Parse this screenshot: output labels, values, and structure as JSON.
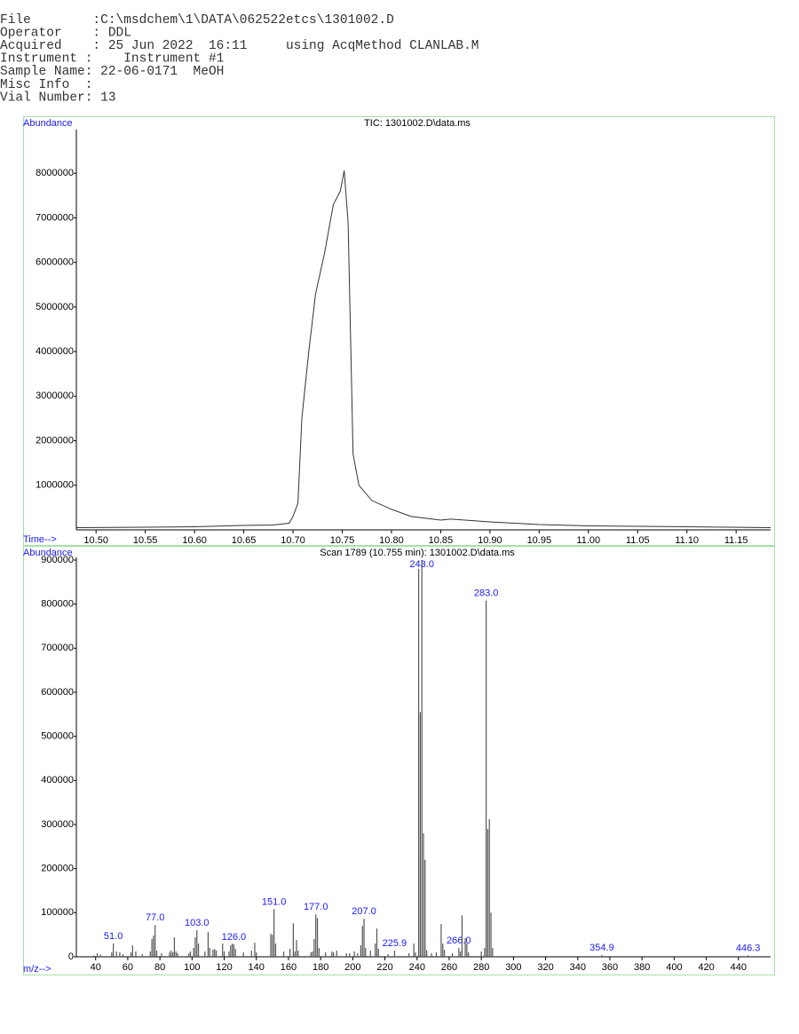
{
  "header": {
    "lines": [
      "File        :C:\\msdchem\\1\\DATA\\062522etcs\\1301002.D",
      "Operator    : DDL",
      "Acquired    : 25 Jun 2022  16:11     using AcqMethod CLANLAB.M",
      "Instrument :    Instrument #1",
      "Sample Name: 22-06-0171  MeOH",
      "Misc Info  :",
      "Vial Number: 13"
    ]
  },
  "chart_data": [
    {
      "type": "line",
      "title": "TIC: 1301002.D\\data.ms",
      "y_label": "Abundance",
      "x_label": "Time-->",
      "color": "#333333",
      "x": [
        10.48,
        10.55,
        10.6,
        10.65,
        10.68,
        10.696,
        10.7,
        10.705,
        10.709,
        10.716,
        10.723,
        10.732,
        10.741,
        10.748,
        10.752,
        10.756,
        10.761,
        10.767,
        10.78,
        10.8,
        10.82,
        10.85,
        10.86,
        10.9,
        10.95,
        11.0,
        11.1,
        11.185
      ],
      "values": [
        50000,
        60000,
        70000,
        100000,
        110000,
        150000,
        300000,
        600000,
        2500000,
        4000000,
        5300000,
        6200000,
        7300000,
        7600000,
        8060000,
        6900000,
        1700000,
        1000000,
        660000,
        460000,
        300000,
        220000,
        240000,
        180000,
        120000,
        90000,
        70000,
        50000
      ],
      "xlim": [
        10.48,
        11.185
      ],
      "ylim": [
        0,
        8980000
      ],
      "xticks": [
        {
          "value": 10.5,
          "label": "10.50"
        },
        10.55,
        {
          "value": 10.6,
          "label": "10.60"
        },
        10.65,
        {
          "value": 10.7,
          "label": "10.70"
        },
        10.75,
        {
          "value": 10.8,
          "label": "10.80"
        },
        10.85,
        {
          "value": 10.9,
          "label": "10.90"
        },
        10.95,
        {
          "value": 11,
          "label": "11.00"
        },
        11.05,
        {
          "value": 11.1,
          "label": "11.10"
        },
        11.15
      ],
      "yticks": [
        1000000,
        2000000,
        3000000,
        4000000,
        5000000,
        6000000,
        7000000,
        8000000
      ]
    },
    {
      "type": "bar",
      "title": "Scan 1789 (10.755 min): 1301002.D\\data.ms",
      "y_label": "Abundance",
      "x_label": "m/z-->",
      "color": "#555555",
      "label_color": "#1a1aff",
      "x": [
        39,
        41,
        43,
        50,
        51,
        53,
        55,
        57,
        62,
        63,
        65,
        69,
        74,
        75,
        76,
        77,
        78,
        81,
        86,
        87,
        88,
        89,
        90,
        91,
        98,
        99,
        101,
        102,
        103,
        104,
        108,
        110,
        111,
        113,
        114,
        115,
        119,
        120,
        123,
        124,
        125,
        126,
        127,
        132,
        137,
        139,
        140,
        149,
        150,
        151,
        152,
        157,
        161,
        163,
        164,
        165,
        166,
        174,
        175,
        176,
        177,
        178,
        179,
        183,
        187,
        188,
        190,
        196,
        198,
        201,
        203,
        205,
        206,
        207,
        208,
        211,
        214,
        215,
        216,
        222,
        226,
        235,
        238,
        239,
        241,
        242,
        243,
        244,
        245,
        246,
        249,
        252,
        255,
        256,
        257,
        262,
        266,
        267,
        268,
        270,
        271,
        272,
        280,
        282,
        283,
        284,
        285,
        286,
        287,
        355,
        446
      ],
      "values": [
        3000,
        8000,
        5000,
        10000,
        30000,
        12000,
        10000,
        6000,
        10000,
        26000,
        12000,
        6000,
        12000,
        40000,
        48000,
        72000,
        14000,
        8000,
        10000,
        14000,
        10000,
        44000,
        12000,
        8000,
        8000,
        12000,
        20000,
        44000,
        60000,
        30000,
        12000,
        56000,
        20000,
        16000,
        18000,
        14000,
        30000,
        12000,
        12000,
        26000,
        30000,
        28000,
        18000,
        10000,
        14000,
        32000,
        10000,
        52000,
        50000,
        108000,
        30000,
        12000,
        18000,
        76000,
        12000,
        38000,
        14000,
        10000,
        12000,
        40000,
        96000,
        88000,
        20000,
        10000,
        12000,
        10000,
        14000,
        8000,
        8000,
        12000,
        8000,
        26000,
        70000,
        86000,
        20000,
        14000,
        30000,
        64000,
        18000,
        6000,
        14000,
        8000,
        30000,
        10000,
        880000,
        555000,
        900000,
        280000,
        220000,
        15000,
        8000,
        10000,
        74000,
        30000,
        16000,
        8000,
        20000,
        12000,
        94000,
        42000,
        30000,
        10000,
        12000,
        20000,
        808000,
        290000,
        312000,
        100000,
        20000,
        4000,
        3000
      ],
      "x_labels": [
        null,
        null,
        null,
        null,
        "51.0",
        null,
        null,
        null,
        null,
        null,
        null,
        null,
        null,
        null,
        null,
        "77.0",
        null,
        null,
        null,
        null,
        null,
        null,
        null,
        null,
        null,
        null,
        null,
        null,
        "103.0",
        null,
        null,
        null,
        null,
        null,
        null,
        null,
        null,
        null,
        null,
        null,
        null,
        "126.0",
        null,
        null,
        null,
        null,
        null,
        null,
        null,
        "151.0",
        null,
        null,
        null,
        null,
        null,
        null,
        null,
        null,
        null,
        null,
        "177.0",
        null,
        null,
        null,
        null,
        null,
        null,
        null,
        null,
        null,
        null,
        null,
        null,
        "207.0",
        null,
        null,
        null,
        null,
        null,
        null,
        "225.9",
        null,
        null,
        null,
        null,
        null,
        "243.0",
        null,
        null,
        null,
        null,
        null,
        null,
        null,
        null,
        null,
        "266.0",
        null,
        null,
        null,
        null,
        null,
        null,
        null,
        "283.0",
        null,
        null,
        null,
        null,
        "354.9",
        "446.3"
      ],
      "xlim": [
        28,
        460
      ],
      "ylim": [
        0,
        906000
      ],
      "xticks": [
        40,
        60,
        80,
        100,
        120,
        140,
        160,
        180,
        200,
        220,
        240,
        260,
        280,
        300,
        320,
        340,
        360,
        380,
        400,
        420,
        440
      ],
      "yticks": [
        0,
        100000,
        200000,
        300000,
        400000,
        500000,
        600000,
        700000,
        800000,
        900000
      ]
    }
  ]
}
